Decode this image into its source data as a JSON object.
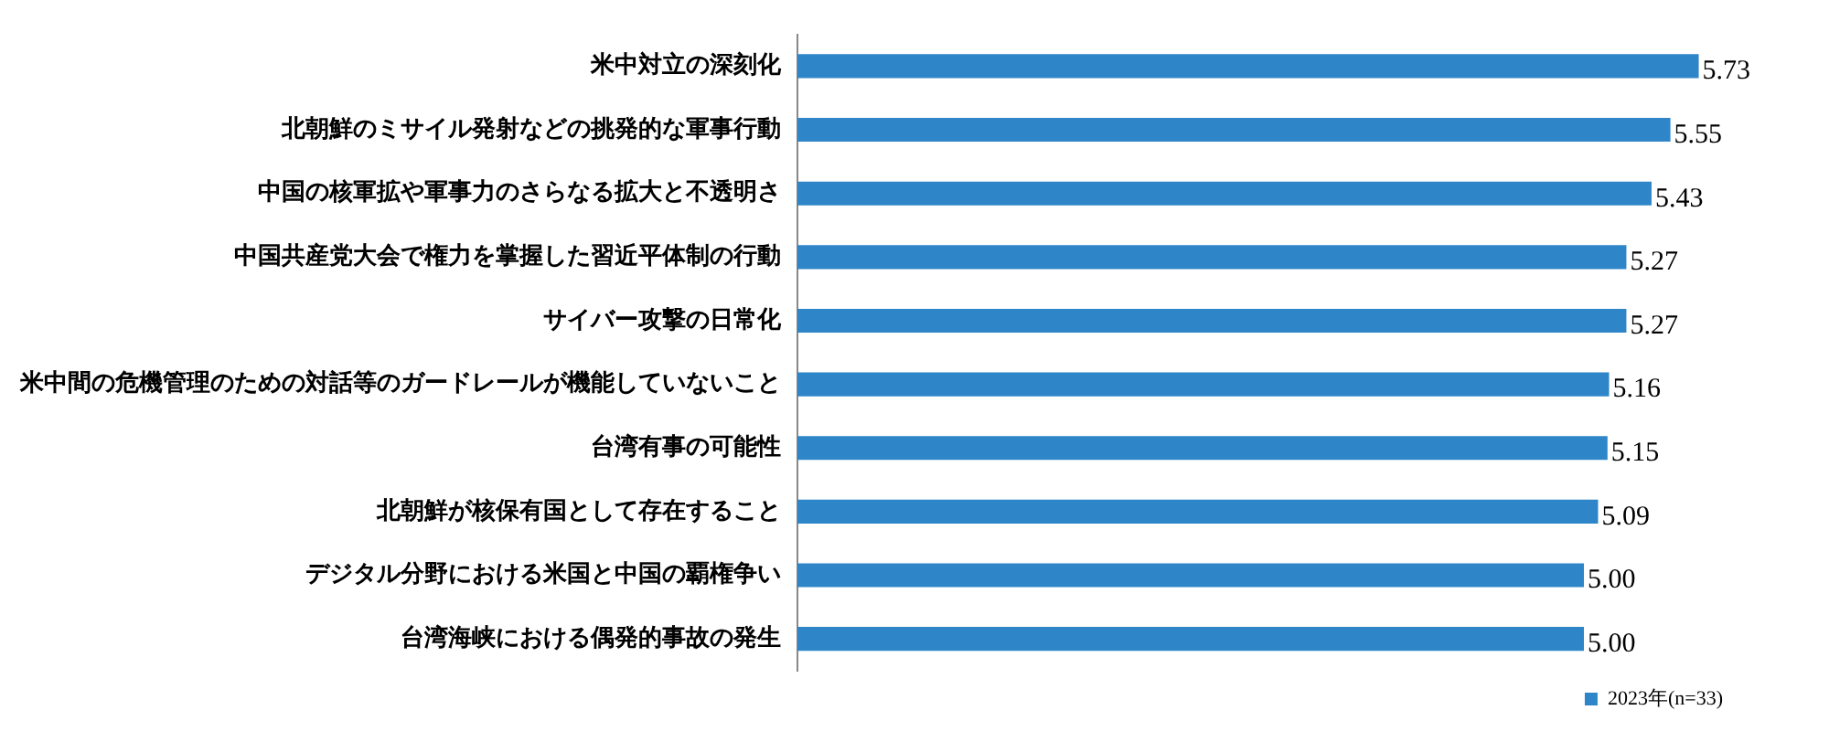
{
  "chart_data": {
    "type": "bar",
    "orientation": "horizontal",
    "categories": [
      "米中対立の深刻化",
      "北朝鮮のミサイル発射などの挑発的な軍事行動",
      "中国の核軍拡や軍事力のさらなる拡大と不透明さ",
      "中国共産党大会で権力を掌握した習近平体制の行動",
      "サイバー攻撃の日常化",
      "米中間の危機管理のための対話等のガードレールが機能していないこと",
      "台湾有事の可能性",
      "北朝鮮が核保有国として存在すること",
      "デジタル分野における米国と中国の覇権争い",
      "台湾海峡における偶発的事故の発生"
    ],
    "series": [
      {
        "name": "2023年(n=33)",
        "color": "#2e86c8",
        "values": [
          5.73,
          5.55,
          5.43,
          5.27,
          5.27,
          5.16,
          5.15,
          5.09,
          5.0,
          5.0
        ],
        "value_labels": [
          "5.73",
          "5.55",
          "5.43",
          "5.27",
          "5.27",
          "5.16",
          "5.15",
          "5.09",
          "5.00",
          "5.00"
        ]
      }
    ],
    "grid": false,
    "legend": "bottom right"
  }
}
